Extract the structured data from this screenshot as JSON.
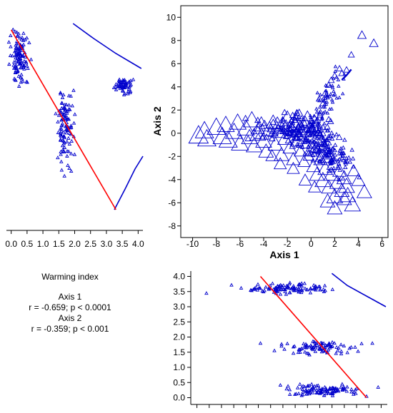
{
  "colors": {
    "points": "#0000cc",
    "fit_line": "#ff0000",
    "curve": "#0000cc",
    "axis": "#000000"
  },
  "info": {
    "title": "Warming index",
    "axis1_label": "Axis 1",
    "axis1_stats": "r = -0.659; p < 0.0001",
    "axis2_label": "Axis 2",
    "axis2_stats": "r = -0.359; p < 0.001"
  },
  "chart_data": [
    {
      "id": "top-left",
      "type": "scatter",
      "xlabel": "",
      "ylabel": "",
      "xlim": [
        -0.15,
        4.15
      ],
      "ylim": [
        0,
        1
      ],
      "xticks": [
        0.0,
        0.5,
        1.0,
        1.5,
        2.0,
        2.5,
        3.0,
        3.5,
        4.0
      ],
      "tick_labels": [
        "0.0",
        "0.5",
        "1.0",
        "1.5",
        "2.0",
        "2.5",
        "3.0",
        "3.5",
        "4.0"
      ],
      "marker": "triangle",
      "clusters": [
        {
          "x_center": 0.25,
          "x_spread": 0.14,
          "y_center": 0.79,
          "y_spread": 0.055,
          "count": 120
        },
        {
          "x_center": 1.7,
          "x_spread": 0.13,
          "y_center": 0.48,
          "y_spread": 0.085,
          "count": 110
        },
        {
          "x_center": 3.55,
          "x_spread": 0.12,
          "y_center": 0.66,
          "y_spread": 0.02,
          "count": 60
        }
      ],
      "fit_line": {
        "x": [
          0.0,
          3.3
        ],
        "y": [
          0.92,
          0.08
        ]
      },
      "curves": [
        {
          "x": [
            1.95,
            2.6,
            3.3,
            4.1
          ],
          "y": [
            0.95,
            0.88,
            0.81,
            0.74
          ]
        },
        {
          "x": [
            3.25,
            3.6,
            3.9,
            4.15
          ],
          "y": [
            0.08,
            0.18,
            0.27,
            0.33
          ]
        }
      ]
    },
    {
      "id": "top-right",
      "type": "scatter",
      "xlabel": "Axis 1",
      "ylabel": "Axis 2",
      "xlim": [
        -11,
        6.5
      ],
      "ylim": [
        -9,
        11
      ],
      "xticks": [
        -10,
        -8,
        -6,
        -4,
        -2,
        0,
        2,
        4,
        6
      ],
      "yticks": [
        -8,
        -6,
        -4,
        -2,
        0,
        2,
        4,
        6,
        8,
        10
      ],
      "x_tick_labels": [
        "-10",
        "-8",
        "-6",
        "-4",
        "-2",
        "0",
        "2",
        "4",
        "6"
      ],
      "y_tick_labels": [
        "-8",
        "-6",
        "-4",
        "-2",
        "0",
        "2",
        "4",
        "6",
        "8",
        "10"
      ],
      "marker": "triangle",
      "points": [
        [
          -9.5,
          -0.1
        ],
        [
          -9.0,
          0.3
        ],
        [
          -8.8,
          -0.4
        ],
        [
          -8.0,
          0.6
        ],
        [
          -7.5,
          -0.2
        ],
        [
          -7.2,
          0.8
        ],
        [
          -7.0,
          -0.5
        ],
        [
          -6.5,
          0.2
        ],
        [
          -6.2,
          1.0
        ],
        [
          -6.0,
          -0.8
        ],
        [
          -5.5,
          0.5
        ],
        [
          -5.2,
          -0.3
        ],
        [
          -5.0,
          1.2
        ],
        [
          -4.8,
          -1.0
        ],
        [
          -4.5,
          0.0
        ],
        [
          -4.2,
          0.8
        ],
        [
          -4.0,
          -0.6
        ],
        [
          -3.8,
          -1.5
        ],
        [
          -3.5,
          0.4
        ],
        [
          -3.2,
          1.0
        ],
        [
          -3.0,
          -0.9
        ],
        [
          -2.8,
          0.2
        ],
        [
          -2.5,
          -1.8
        ],
        [
          -2.4,
          0.9
        ],
        [
          -2.2,
          -0.4
        ],
        [
          -2.0,
          1.4
        ],
        [
          -1.8,
          -1.2
        ],
        [
          -1.6,
          0.4
        ],
        [
          -1.5,
          -2.2
        ],
        [
          -1.3,
          0.8
        ],
        [
          -1.2,
          -0.6
        ],
        [
          -1.0,
          1.6
        ],
        [
          -0.9,
          -1.5
        ],
        [
          -0.8,
          0.2
        ],
        [
          -0.6,
          -2.4
        ],
        [
          -0.5,
          1.0
        ],
        [
          -0.4,
          -0.8
        ],
        [
          -0.3,
          1.5
        ],
        [
          -0.2,
          -1.9
        ],
        [
          0.0,
          0.5
        ],
        [
          0.2,
          -2.8
        ],
        [
          0.3,
          1.2
        ],
        [
          0.4,
          -1.2
        ],
        [
          0.5,
          -3.5
        ],
        [
          0.6,
          0.0
        ],
        [
          0.8,
          -2.2
        ],
        [
          1.0,
          -4.0
        ],
        [
          1.1,
          -1.0
        ],
        [
          1.2,
          -3.0
        ],
        [
          1.4,
          -2.0
        ],
        [
          1.5,
          -4.6
        ],
        [
          1.7,
          -3.5
        ],
        [
          1.9,
          -2.6
        ],
        [
          2.0,
          -5.4
        ],
        [
          2.2,
          -4.2
        ],
        [
          2.4,
          -3.2
        ],
        [
          2.6,
          -4.9
        ],
        [
          2.8,
          -3.8
        ],
        [
          3.0,
          -4.5
        ],
        [
          3.1,
          -5.3
        ],
        [
          2.0,
          -6.4
        ],
        [
          3.5,
          -6.1
        ],
        [
          -0.5,
          -4.0
        ],
        [
          0.3,
          -4.6
        ],
        [
          1.4,
          -5.8
        ],
        [
          2.8,
          -5.6
        ],
        [
          -1.5,
          -3.0
        ],
        [
          4.0,
          -4.0
        ],
        [
          4.5,
          -5.0
        ],
        [
          3.6,
          -3.2
        ],
        [
          -0.9,
          0.7
        ],
        [
          0.1,
          -1.6
        ],
        [
          0.9,
          -0.6
        ],
        [
          1.3,
          -1.8
        ],
        [
          -2.6,
          -2.6
        ],
        [
          -3.3,
          -1.9
        ],
        [
          0.7,
          3.0
        ],
        [
          1.2,
          3.5
        ],
        [
          1.5,
          4.2
        ],
        [
          2.0,
          5.0
        ],
        [
          2.6,
          5.2
        ],
        [
          3.4,
          6.8
        ],
        [
          4.3,
          8.5
        ],
        [
          5.3,
          7.8
        ],
        [
          2.4,
          5.6
        ],
        [
          1.0,
          2.6
        ],
        [
          3.0,
          5.5
        ],
        [
          -1.2,
          1.8
        ],
        [
          0.8,
          1.8
        ],
        [
          1.7,
          4.6
        ]
      ],
      "sizes": [
        16,
        15,
        15,
        15,
        15,
        14,
        15,
        14,
        14,
        14,
        14,
        13,
        14,
        13,
        13,
        13,
        13,
        12,
        13,
        12,
        12,
        12,
        12,
        11,
        12,
        11,
        11,
        11,
        11,
        11,
        11,
        10,
        10,
        11,
        10,
        10,
        10,
        9,
        9,
        9,
        11,
        8,
        10,
        12,
        9,
        11,
        13,
        10,
        12,
        11,
        12,
        12,
        11,
        13,
        12,
        11,
        12,
        12,
        13,
        13,
        12,
        13,
        10,
        10,
        12,
        12,
        10,
        11,
        12,
        10,
        8,
        8,
        8,
        9,
        10,
        10,
        5,
        5,
        5,
        5,
        5,
        5,
        7,
        7,
        5,
        5,
        5,
        5,
        5,
        5
      ],
      "fine_clusters": [
        {
          "x_center": 0.8,
          "x_spread": 1.3,
          "y_center": -1.2,
          "y_spread": 0.8,
          "count": 180,
          "size": 5,
          "slope": -0.5
        },
        {
          "x_center": 1.3,
          "x_spread": 0.8,
          "y_center": 2.8,
          "y_spread": 0.9,
          "count": 70,
          "size": 4,
          "slope": 1.5
        },
        {
          "x_center": -1.5,
          "x_spread": 1.6,
          "y_center": 0.3,
          "y_spread": 0.6,
          "count": 90,
          "size": 8,
          "slope": 0.0
        }
      ],
      "curve": {
        "x": [
          2.6,
          3.0,
          3.4
        ],
        "y": [
          4.6,
          5.0,
          5.5
        ]
      }
    },
    {
      "id": "bottom-right",
      "type": "scatter",
      "xlabel": "",
      "ylabel": "",
      "xlim": [
        0,
        1
      ],
      "ylim": [
        -0.2,
        4.2
      ],
      "yticks": [
        0.0,
        0.5,
        1.0,
        1.5,
        2.0,
        2.5,
        3.0,
        3.5,
        4.0
      ],
      "tick_labels": [
        "0.0",
        "0.5",
        "1.0",
        "1.5",
        "2.0",
        "2.5",
        "3.0",
        "3.5",
        "4.0"
      ],
      "x_minor_ticks": 16,
      "marker": "triangle",
      "clusters": [
        {
          "x_center": 0.5,
          "x_spread": 0.09,
          "y_center": 3.62,
          "y_spread": 0.08,
          "count": 110
        },
        {
          "x_center": 0.65,
          "x_spread": 0.09,
          "y_center": 1.65,
          "y_spread": 0.12,
          "count": 90
        },
        {
          "x_center": 0.68,
          "x_spread": 0.09,
          "y_center": 0.25,
          "y_spread": 0.09,
          "count": 110
        }
      ],
      "outliers": [
        [
          0.07,
          3.45
        ],
        [
          0.2,
          3.72
        ],
        [
          0.25,
          3.62
        ],
        [
          0.3,
          3.55
        ],
        [
          0.36,
          3.52
        ],
        [
          0.4,
          3.7
        ],
        [
          0.35,
          1.8
        ],
        [
          0.93,
          1.8
        ],
        [
          0.96,
          0.35
        ],
        [
          0.9,
          0.05
        ]
      ],
      "fit_line": {
        "x": [
          0.35,
          0.9
        ],
        "y": [
          4.0,
          0.0
        ]
      },
      "curve": {
        "x": [
          0.72,
          0.8,
          0.9,
          1.0
        ],
        "y": [
          4.1,
          3.7,
          3.35,
          3.0
        ]
      }
    }
  ]
}
